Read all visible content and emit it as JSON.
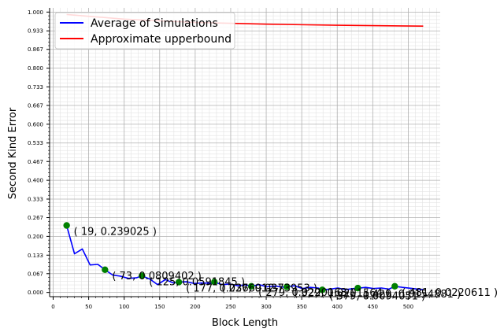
{
  "chart_data": {
    "type": "line",
    "xlabel": "Block Length",
    "ylabel": "Second Kind Error",
    "xlim": [
      -5,
      545
    ],
    "ylim": [
      -0.015,
      1.015
    ],
    "grid": true,
    "legend_placement": "top-left",
    "x_ticks": [
      0,
      50,
      100,
      150,
      200,
      250,
      300,
      350,
      400,
      450,
      500
    ],
    "x_tick_labels": [
      "0",
      "50",
      "100",
      "150",
      "200",
      "250",
      "300",
      "350",
      "400",
      "450",
      "500"
    ],
    "y_ticks": [
      0.0,
      0.067,
      0.133,
      0.2,
      0.267,
      0.333,
      0.4,
      0.467,
      0.533,
      0.6,
      0.667,
      0.733,
      0.8,
      0.867,
      0.933,
      1.0
    ],
    "y_tick_labels": [
      "0.000",
      "0.067",
      "0.133",
      "0.200",
      "0.267",
      "0.333",
      "0.400",
      "0.467",
      "0.533",
      "0.600",
      "0.667",
      "0.733",
      "0.800",
      "0.867",
      "0.933",
      "1.000"
    ],
    "series": [
      {
        "name": "Average of Simulations",
        "color": "#0000ff",
        "x": [
          19,
          30,
          41,
          52,
          63,
          73,
          84,
          95,
          106,
          117,
          125,
          136,
          147,
          158,
          169,
          177,
          188,
          199,
          210,
          221,
          227,
          238,
          249,
          260,
          271,
          279,
          290,
          301,
          312,
          323,
          329,
          340,
          351,
          362,
          373,
          379,
          390,
          401,
          412,
          423,
          429,
          440,
          451,
          462,
          473,
          481,
          492,
          503,
          514,
          521
        ],
        "y": [
          0.239025,
          0.138,
          0.155,
          0.098,
          0.1,
          0.0809402,
          0.062,
          0.058,
          0.05,
          0.052,
          0.059,
          0.048,
          0.028,
          0.046,
          0.034,
          0.037,
          0.038,
          0.032,
          0.034,
          0.033,
          0.037,
          0.028,
          0.03,
          0.024,
          0.027,
          0.022,
          0.028,
          0.02,
          0.023,
          0.019,
          0.02,
          0.024,
          0.014,
          0.018,
          0.016,
          0.009,
          0.012,
          0.016,
          0.01,
          0.014,
          0.015,
          0.018,
          0.014,
          0.016,
          0.012,
          0.022,
          0.018,
          0.015,
          0.012,
          0.01
        ]
      },
      {
        "name": "Approximate upperbound",
        "color": "#ff0000",
        "x": [
          19,
          100,
          200,
          300,
          400,
          521
        ],
        "y": [
          0.9915,
          0.975,
          0.963,
          0.957,
          0.953,
          0.95
        ]
      }
    ],
    "highlighted_points": [
      {
        "x": 19,
        "y": 0.239025,
        "label": "( 19, 0.239025 )"
      },
      {
        "x": 73,
        "y": 0.0809402,
        "label": "( 73, 0.0809402 )"
      },
      {
        "x": 125,
        "y": 0.0591845,
        "label": "( 125, 0.0591845 )"
      },
      {
        "x": 177,
        "y": 0.0366912,
        "label": "( 177, 0.0366912 )"
      },
      {
        "x": 227,
        "y": 0.0373953,
        "label": "( 227, 0.0373953 )"
      },
      {
        "x": 279,
        "y": 0.0220163,
        "label": "( 279, 0.0220163 )"
      },
      {
        "x": 329,
        "y": 0.0201564,
        "label": "( 329, 0.0201564 )"
      },
      {
        "x": 379,
        "y": 0.0094051,
        "label": "( 379, 0.0094051 )"
      },
      {
        "x": 429,
        "y": 0.0154881,
        "label": "( 429, 0.0154881 )"
      },
      {
        "x": 481,
        "y": 0.0220611,
        "label": "( 481, 0.0220611 )"
      }
    ],
    "highlight_color": "#008000"
  }
}
